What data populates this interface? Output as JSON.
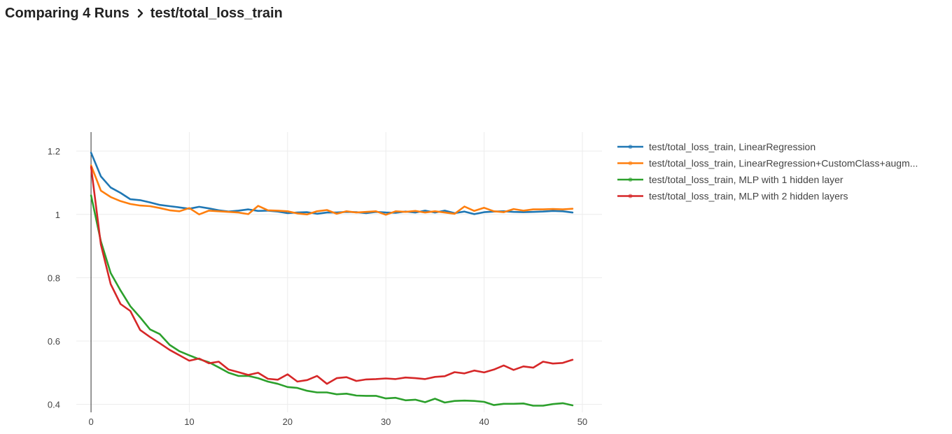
{
  "header": {
    "title": "Comparing 4 Runs",
    "separator_icon": "chevron-right-icon",
    "metric": "test/total_loss_train"
  },
  "chart_data": {
    "type": "line",
    "title": "",
    "xlabel": "",
    "ylabel": "",
    "xlim": [
      -1.5,
      52
    ],
    "ylim": [
      0.375,
      1.26
    ],
    "x_ticks": [
      0,
      10,
      20,
      30,
      40,
      50
    ],
    "y_ticks": [
      0.4,
      0.6,
      0.8,
      1,
      1.2
    ],
    "y_tick_labels": [
      "0.4",
      "0.6",
      "0.8",
      "1",
      "1.2"
    ],
    "grid": true,
    "legend_position": "right",
    "series": [
      {
        "name": "test/total_loss_train, LinearRegression",
        "legend_label": "test/total_loss_train, LinearRegression",
        "color": "#1f77b4",
        "x": [
          0,
          1,
          2,
          3,
          4,
          5,
          6,
          7,
          8,
          9,
          10,
          11,
          12,
          13,
          14,
          15,
          16,
          17,
          18,
          19,
          20,
          21,
          22,
          23,
          24,
          25,
          26,
          27,
          28,
          29,
          30,
          31,
          32,
          33,
          34,
          35,
          36,
          37,
          38,
          39,
          40,
          41,
          42,
          43,
          44,
          45,
          46,
          47,
          48,
          49
        ],
        "values": [
          1.195,
          1.12,
          1.085,
          1.068,
          1.048,
          1.045,
          1.038,
          1.03,
          1.026,
          1.022,
          1.018,
          1.024,
          1.019,
          1.013,
          1.009,
          1.012,
          1.016,
          1.011,
          1.012,
          1.009,
          1.004,
          1.006,
          1.007,
          1.002,
          1.006,
          1.006,
          1.008,
          1.007,
          1.004,
          1.008,
          1.006,
          1.005,
          1.009,
          1.006,
          1.012,
          1.006,
          1.012,
          1.004,
          1.009,
          1.001,
          1.007,
          1.009,
          1.01,
          1.008,
          1.007,
          1.008,
          1.009,
          1.011,
          1.01,
          1.006
        ]
      },
      {
        "name": "test/total_loss_train, LinearRegression+CustomClass+augmentation",
        "legend_label": "test/total_loss_train, LinearRegression+CustomClass+augm...",
        "color": "#ff7f0e",
        "x": [
          0,
          1,
          2,
          3,
          4,
          5,
          6,
          7,
          8,
          9,
          10,
          11,
          12,
          13,
          14,
          15,
          16,
          17,
          18,
          19,
          20,
          21,
          22,
          23,
          24,
          25,
          26,
          27,
          28,
          29,
          30,
          31,
          32,
          33,
          34,
          35,
          36,
          37,
          38,
          39,
          40,
          41,
          42,
          43,
          44,
          45,
          46,
          47,
          48,
          49
        ],
        "values": [
          1.155,
          1.075,
          1.055,
          1.042,
          1.033,
          1.028,
          1.026,
          1.02,
          1.013,
          1.01,
          1.02,
          1.0,
          1.012,
          1.01,
          1.008,
          1.006,
          1.001,
          1.027,
          1.013,
          1.012,
          1.01,
          1.003,
          1.0,
          1.01,
          1.014,
          1.002,
          1.01,
          1.006,
          1.008,
          1.01,
          0.999,
          1.01,
          1.008,
          1.011,
          1.006,
          1.01,
          1.006,
          1.002,
          1.025,
          1.011,
          1.021,
          1.01,
          1.007,
          1.017,
          1.012,
          1.016,
          1.016,
          1.017,
          1.016,
          1.018
        ]
      },
      {
        "name": "test/total_loss_train, MLP with 1 hidden layer",
        "legend_label": "test/total_loss_train, MLP with 1 hidden layer",
        "color": "#2ca02c",
        "x": [
          0,
          1,
          2,
          3,
          4,
          5,
          6,
          7,
          8,
          9,
          10,
          11,
          12,
          13,
          14,
          15,
          16,
          17,
          18,
          19,
          20,
          21,
          22,
          23,
          24,
          25,
          26,
          27,
          28,
          29,
          30,
          31,
          32,
          33,
          34,
          35,
          36,
          37,
          38,
          39,
          40,
          41,
          42,
          43,
          44,
          45,
          46,
          47,
          48,
          49
        ],
        "values": [
          1.06,
          0.915,
          0.815,
          0.76,
          0.71,
          0.675,
          0.637,
          0.622,
          0.588,
          0.568,
          0.555,
          0.543,
          0.533,
          0.517,
          0.5,
          0.49,
          0.49,
          0.483,
          0.472,
          0.465,
          0.455,
          0.452,
          0.443,
          0.438,
          0.438,
          0.432,
          0.434,
          0.428,
          0.427,
          0.427,
          0.419,
          0.421,
          0.413,
          0.415,
          0.407,
          0.418,
          0.406,
          0.411,
          0.412,
          0.411,
          0.408,
          0.398,
          0.402,
          0.402,
          0.403,
          0.396,
          0.396,
          0.401,
          0.404,
          0.397
        ]
      },
      {
        "name": "test/total_loss_train, MLP with 2 hidden layers",
        "legend_label": "test/total_loss_train, MLP with 2 hidden layers",
        "color": "#d62728",
        "x": [
          0,
          1,
          2,
          3,
          4,
          5,
          6,
          7,
          8,
          9,
          10,
          11,
          12,
          13,
          14,
          15,
          16,
          17,
          18,
          19,
          20,
          21,
          22,
          23,
          24,
          25,
          26,
          27,
          28,
          29,
          30,
          31,
          32,
          33,
          34,
          35,
          36,
          37,
          38,
          39,
          40,
          41,
          42,
          43,
          44,
          45,
          46,
          47,
          48,
          49
        ],
        "values": [
          1.15,
          0.905,
          0.78,
          0.717,
          0.695,
          0.635,
          0.613,
          0.593,
          0.572,
          0.555,
          0.538,
          0.545,
          0.53,
          0.535,
          0.51,
          0.502,
          0.493,
          0.5,
          0.481,
          0.478,
          0.495,
          0.472,
          0.477,
          0.49,
          0.465,
          0.483,
          0.486,
          0.474,
          0.479,
          0.48,
          0.482,
          0.48,
          0.485,
          0.483,
          0.48,
          0.487,
          0.489,
          0.502,
          0.498,
          0.507,
          0.501,
          0.51,
          0.523,
          0.509,
          0.52,
          0.516,
          0.535,
          0.529,
          0.531,
          0.541
        ]
      }
    ]
  }
}
